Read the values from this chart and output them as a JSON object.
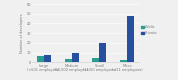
{
  "categories": [
    "Large\n(>501 employees)",
    "Medium\n(51-500 employees)",
    "Small\n(11-50 employees)",
    "Micro\n(<11 employees)"
  ],
  "public_values": [
    7,
    4,
    5,
    2
  ],
  "private_values": [
    8,
    10,
    20,
    48
  ],
  "public_color": "#2a9d8f",
  "private_color": "#264f9e",
  "ylabel": "Number of developers",
  "ylim": [
    0,
    60
  ],
  "yticks": [
    0,
    10,
    20,
    30,
    40,
    50,
    60
  ],
  "legend_labels": [
    "Public",
    "Private"
  ],
  "bar_width": 0.25,
  "background_color": "#f0f0f0"
}
